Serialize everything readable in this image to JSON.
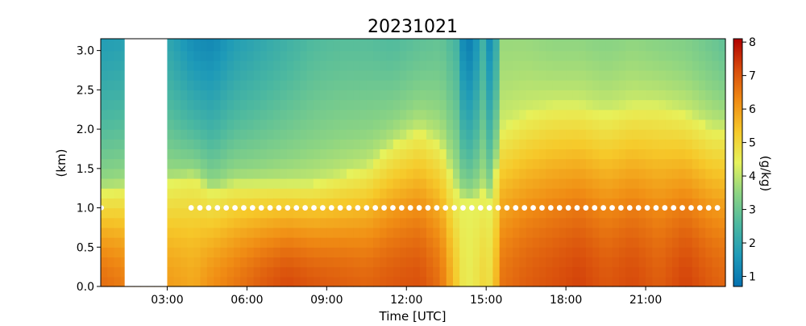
{
  "chart_data": {
    "type": "heatmap",
    "title": "20231021",
    "xlabel": "Time [UTC]",
    "ylabel": "(km)",
    "colorbar_label": "(g/kg)",
    "x_range_hours": [
      0.5,
      24
    ],
    "ylim_km": [
      0,
      3.15
    ],
    "xticks": [
      {
        "value": 3,
        "label": "03:00"
      },
      {
        "value": 6,
        "label": "06:00"
      },
      {
        "value": 9,
        "label": "09:00"
      },
      {
        "value": 12,
        "label": "12:00"
      },
      {
        "value": 15,
        "label": "15:00"
      },
      {
        "value": 18,
        "label": "18:00"
      },
      {
        "value": 21,
        "label": "21:00"
      }
    ],
    "yticks": [
      {
        "value": 0.0,
        "label": "0.0"
      },
      {
        "value": 0.5,
        "label": "0.5"
      },
      {
        "value": 1.0,
        "label": "1.0"
      },
      {
        "value": 1.5,
        "label": "1.5"
      },
      {
        "value": 2.0,
        "label": "2.0"
      },
      {
        "value": 2.5,
        "label": "2.5"
      },
      {
        "value": 3.0,
        "label": "3.0"
      }
    ],
    "colorbar": {
      "min": 0.7,
      "max": 8.1,
      "ticks": [
        {
          "value": 1,
          "label": "1"
        },
        {
          "value": 2,
          "label": "2"
        },
        {
          "value": 3,
          "label": "3"
        },
        {
          "value": 4,
          "label": "4"
        },
        {
          "value": 5,
          "label": "5"
        },
        {
          "value": 6,
          "label": "6"
        },
        {
          "value": 7,
          "label": "7"
        },
        {
          "value": 8,
          "label": "8"
        }
      ],
      "colors": [
        "#0571b0",
        "#1e9ab8",
        "#4cb8a0",
        "#8cd483",
        "#e6f25c",
        "#f6c92a",
        "#f08c14",
        "#d84c0c",
        "#b00000"
      ]
    },
    "missing_data_hours": [
      1.4,
      3.0
    ],
    "marker_line": {
      "height_km": 1.0,
      "start_hour": 3.9,
      "end_hour": 24,
      "color": "#ffffff"
    },
    "columns": [
      {
        "time": 0.5,
        "surface": 6.7,
        "top": 1.7,
        "dry_height": 1.2
      },
      {
        "time": 3.0,
        "surface": 6.0,
        "top": 2.0,
        "dry_height": 1.3
      },
      {
        "time": 4.0,
        "surface": 5.8,
        "top": 1.3,
        "dry_height": 1.4
      },
      {
        "time": 4.7,
        "surface": 6.2,
        "top": 1.2,
        "dry_height": 1.2
      },
      {
        "time": 5.5,
        "surface": 6.5,
        "top": 1.7,
        "dry_height": 1.3
      },
      {
        "time": 6.5,
        "surface": 6.9,
        "top": 2.0,
        "dry_height": 1.3
      },
      {
        "time": 7.5,
        "surface": 7.2,
        "top": 2.3,
        "dry_height": 1.3
      },
      {
        "time": 8.5,
        "surface": 7.0,
        "top": 2.6,
        "dry_height": 1.3
      },
      {
        "time": 9.5,
        "surface": 6.9,
        "top": 2.7,
        "dry_height": 1.4
      },
      {
        "time": 10.5,
        "surface": 6.8,
        "top": 2.7,
        "dry_height": 1.5
      },
      {
        "time": 11.5,
        "surface": 7.0,
        "top": 2.6,
        "dry_height": 1.8
      },
      {
        "time": 12.5,
        "surface": 7.1,
        "top": 2.8,
        "dry_height": 2.0
      },
      {
        "time": 13.3,
        "surface": 6.6,
        "top": 2.9,
        "dry_height": 1.8
      },
      {
        "time": 13.9,
        "surface": 5.2,
        "top": 2.4,
        "dry_height": 1.2
      },
      {
        "time": 14.2,
        "surface": 4.5,
        "top": 0.9,
        "dry_height": 1.1
      },
      {
        "time": 14.5,
        "surface": 4.6,
        "top": 1.1,
        "dry_height": 1.1
      },
      {
        "time": 14.9,
        "surface": 5.0,
        "top": 2.4,
        "dry_height": 1.2
      },
      {
        "time": 15.2,
        "surface": 4.8,
        "top": 1.0,
        "dry_height": 1.1
      },
      {
        "time": 15.6,
        "surface": 6.6,
        "top": 3.6,
        "dry_height": 2.0
      },
      {
        "time": 16.5,
        "surface": 6.9,
        "top": 3.6,
        "dry_height": 2.2
      },
      {
        "time": 17.5,
        "surface": 7.1,
        "top": 3.5,
        "dry_height": 2.3
      },
      {
        "time": 18.5,
        "surface": 7.3,
        "top": 3.5,
        "dry_height": 2.3
      },
      {
        "time": 19.5,
        "surface": 7.0,
        "top": 3.4,
        "dry_height": 2.2
      },
      {
        "time": 20.5,
        "surface": 7.2,
        "top": 3.5,
        "dry_height": 2.3
      },
      {
        "time": 21.5,
        "surface": 6.9,
        "top": 3.4,
        "dry_height": 2.3
      },
      {
        "time": 22.5,
        "surface": 7.3,
        "top": 3.3,
        "dry_height": 2.2
      },
      {
        "time": 23.5,
        "surface": 6.9,
        "top": 3.0,
        "dry_height": 2.0
      },
      {
        "time": 24.0,
        "surface": 6.8,
        "top": 2.8,
        "dry_height": 2.0
      }
    ]
  }
}
